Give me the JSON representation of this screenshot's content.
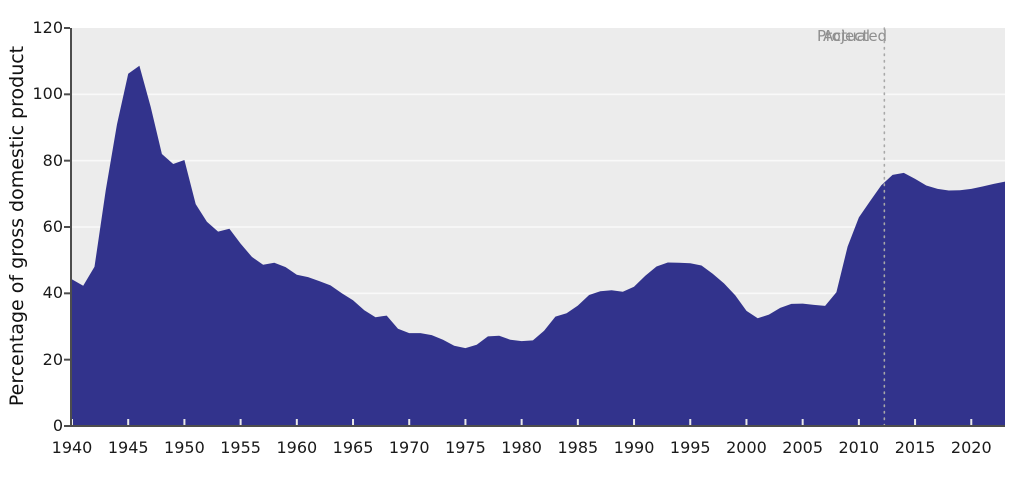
{
  "chart": {
    "ylabel": "Percentage of gross domestic product",
    "annotations": {
      "actual": "Actual",
      "projected": "Projected"
    }
  },
  "chart_data": {
    "type": "area",
    "title": "",
    "xlabel": "",
    "ylabel": "Percentage of gross domestic product",
    "legend": "none",
    "grid": "horizontal white gridlines on light gray plot background",
    "xlim": [
      1940,
      2023
    ],
    "ylim": [
      0,
      120
    ],
    "xticks": [
      1940,
      1945,
      1950,
      1955,
      1960,
      1965,
      1970,
      1975,
      1980,
      1985,
      1990,
      1995,
      2000,
      2005,
      2010,
      2015,
      2020
    ],
    "yticks": [
      0,
      20,
      40,
      60,
      80,
      100,
      120
    ],
    "divider": {
      "year": 2012,
      "style": "dotted-vertical",
      "label_left": "Actual",
      "label_right": "Projected"
    },
    "years": [
      1940,
      1941,
      1942,
      1943,
      1944,
      1945,
      1946,
      1947,
      1948,
      1949,
      1950,
      1951,
      1952,
      1953,
      1954,
      1955,
      1956,
      1957,
      1958,
      1959,
      1960,
      1961,
      1962,
      1963,
      1964,
      1965,
      1966,
      1967,
      1968,
      1969,
      1970,
      1971,
      1972,
      1973,
      1974,
      1975,
      1976,
      1977,
      1978,
      1979,
      1980,
      1981,
      1982,
      1983,
      1984,
      1985,
      1986,
      1987,
      1988,
      1989,
      1990,
      1991,
      1992,
      1993,
      1994,
      1995,
      1996,
      1997,
      1998,
      1999,
      2000,
      2001,
      2002,
      2003,
      2004,
      2005,
      2006,
      2007,
      2008,
      2009,
      2010,
      2011,
      2012,
      2013,
      2014,
      2015,
      2016,
      2017,
      2018,
      2019,
      2020,
      2021,
      2022,
      2023
    ],
    "values": [
      44.2,
      42.3,
      48.0,
      71.0,
      91.0,
      106.2,
      108.6,
      96.2,
      82.0,
      79.0,
      80.2,
      66.9,
      61.6,
      58.6,
      59.5,
      55.0,
      51.0,
      48.6,
      49.2,
      47.9,
      45.6,
      44.9,
      43.7,
      42.4,
      40.0,
      37.9,
      34.9,
      32.8,
      33.3,
      29.3,
      28.0,
      28.0,
      27.4,
      26.0,
      24.2,
      23.5,
      24.5,
      27.0,
      27.2,
      26.0,
      25.6,
      25.8,
      28.7,
      33.0,
      34.0,
      36.3,
      39.5,
      40.6,
      40.9,
      40.5,
      42.0,
      45.3,
      48.1,
      49.3,
      49.2,
      49.1,
      48.4,
      45.9,
      43.0,
      39.4,
      34.7,
      32.5,
      33.6,
      35.6,
      36.8,
      36.9,
      36.5,
      36.2,
      40.3,
      54.1,
      62.9,
      67.8,
      72.6,
      75.7,
      76.3,
      74.5,
      72.5,
      71.5,
      71.0,
      71.1,
      71.5,
      72.2,
      73.0,
      73.7
    ],
    "colors": {
      "area": "#32338c",
      "plot_bg": "#ececec",
      "gridline": "#f9f9f9",
      "spine": "#4d4d4d",
      "x_tick_mark": "#e9e9e9",
      "divider_line": "#a8a8a8",
      "annotation_text": "#8f8f8f",
      "tick_label_text": "#1a1a1a"
    }
  }
}
